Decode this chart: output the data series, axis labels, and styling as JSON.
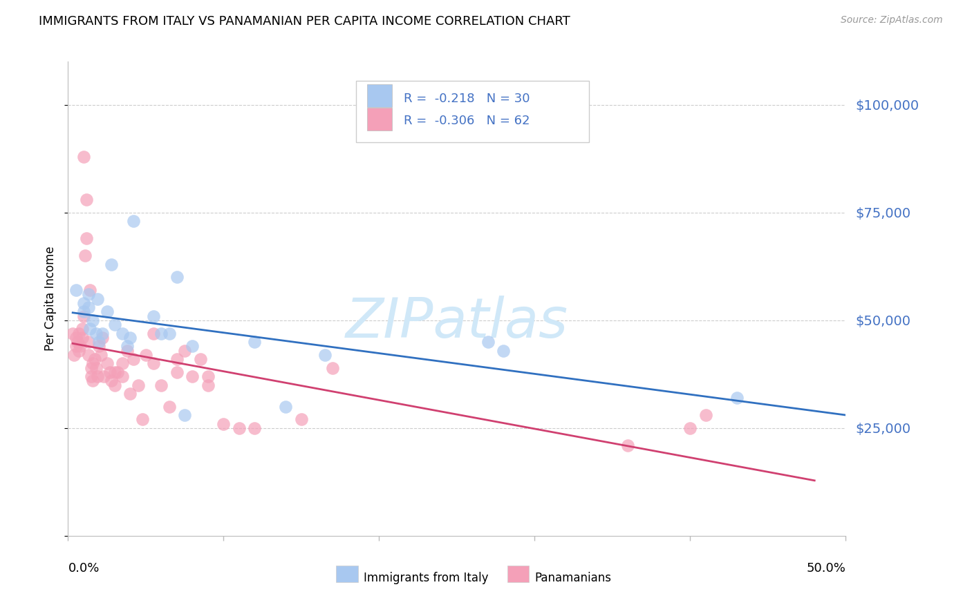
{
  "title": "IMMIGRANTS FROM ITALY VS PANAMANIAN PER CAPITA INCOME CORRELATION CHART",
  "source": "Source: ZipAtlas.com",
  "ylabel": "Per Capita Income",
  "yticks": [
    0,
    25000,
    50000,
    75000,
    100000
  ],
  "ytick_labels": [
    "",
    "$25,000",
    "$50,000",
    "$75,000",
    "$100,000"
  ],
  "xlim": [
    0.0,
    0.5
  ],
  "ylim": [
    0,
    110000
  ],
  "blue_R": "-0.218",
  "blue_N": "30",
  "pink_R": "-0.306",
  "pink_N": "62",
  "legend_label_blue": "Immigrants from Italy",
  "legend_label_pink": "Panamanians",
  "blue_color": "#a8c8f0",
  "pink_color": "#f4a0b8",
  "blue_line_color": "#3070c0",
  "pink_line_color": "#d04070",
  "text_blue": "#4472c4",
  "watermark_color": "#d0e8f8",
  "watermark": "ZIPatlas",
  "blue_scatter_x": [
    0.005,
    0.01,
    0.01,
    0.013,
    0.013,
    0.014,
    0.016,
    0.018,
    0.019,
    0.02,
    0.022,
    0.025,
    0.028,
    0.03,
    0.035,
    0.038,
    0.04,
    0.042,
    0.055,
    0.06,
    0.065,
    0.07,
    0.075,
    0.08,
    0.12,
    0.14,
    0.165,
    0.27,
    0.28,
    0.43
  ],
  "blue_scatter_y": [
    57000,
    54000,
    52000,
    56000,
    53000,
    48000,
    50000,
    47000,
    55000,
    45000,
    47000,
    52000,
    63000,
    49000,
    47000,
    44000,
    46000,
    73000,
    51000,
    47000,
    47000,
    60000,
    28000,
    44000,
    45000,
    30000,
    42000,
    45000,
    43000,
    32000
  ],
  "pink_scatter_x": [
    0.003,
    0.004,
    0.005,
    0.005,
    0.006,
    0.007,
    0.007,
    0.008,
    0.009,
    0.009,
    0.01,
    0.01,
    0.011,
    0.012,
    0.012,
    0.013,
    0.013,
    0.014,
    0.015,
    0.015,
    0.016,
    0.016,
    0.017,
    0.018,
    0.019,
    0.02,
    0.021,
    0.022,
    0.023,
    0.025,
    0.027,
    0.028,
    0.03,
    0.03,
    0.032,
    0.035,
    0.035,
    0.038,
    0.04,
    0.042,
    0.045,
    0.048,
    0.05,
    0.055,
    0.055,
    0.06,
    0.065,
    0.07,
    0.07,
    0.075,
    0.08,
    0.085,
    0.09,
    0.09,
    0.1,
    0.11,
    0.12,
    0.15,
    0.17,
    0.36,
    0.4,
    0.41
  ],
  "pink_scatter_y": [
    47000,
    42000,
    44000,
    46000,
    45000,
    43000,
    47000,
    44000,
    48000,
    46000,
    88000,
    51000,
    65000,
    78000,
    69000,
    45000,
    42000,
    57000,
    39000,
    37000,
    40000,
    36000,
    41000,
    39000,
    37000,
    44000,
    42000,
    46000,
    37000,
    40000,
    38000,
    36000,
    38000,
    35000,
    38000,
    40000,
    37000,
    43000,
    33000,
    41000,
    35000,
    27000,
    42000,
    40000,
    47000,
    35000,
    30000,
    41000,
    38000,
    43000,
    37000,
    41000,
    37000,
    35000,
    26000,
    25000,
    25000,
    27000,
    39000,
    21000,
    25000,
    28000
  ]
}
